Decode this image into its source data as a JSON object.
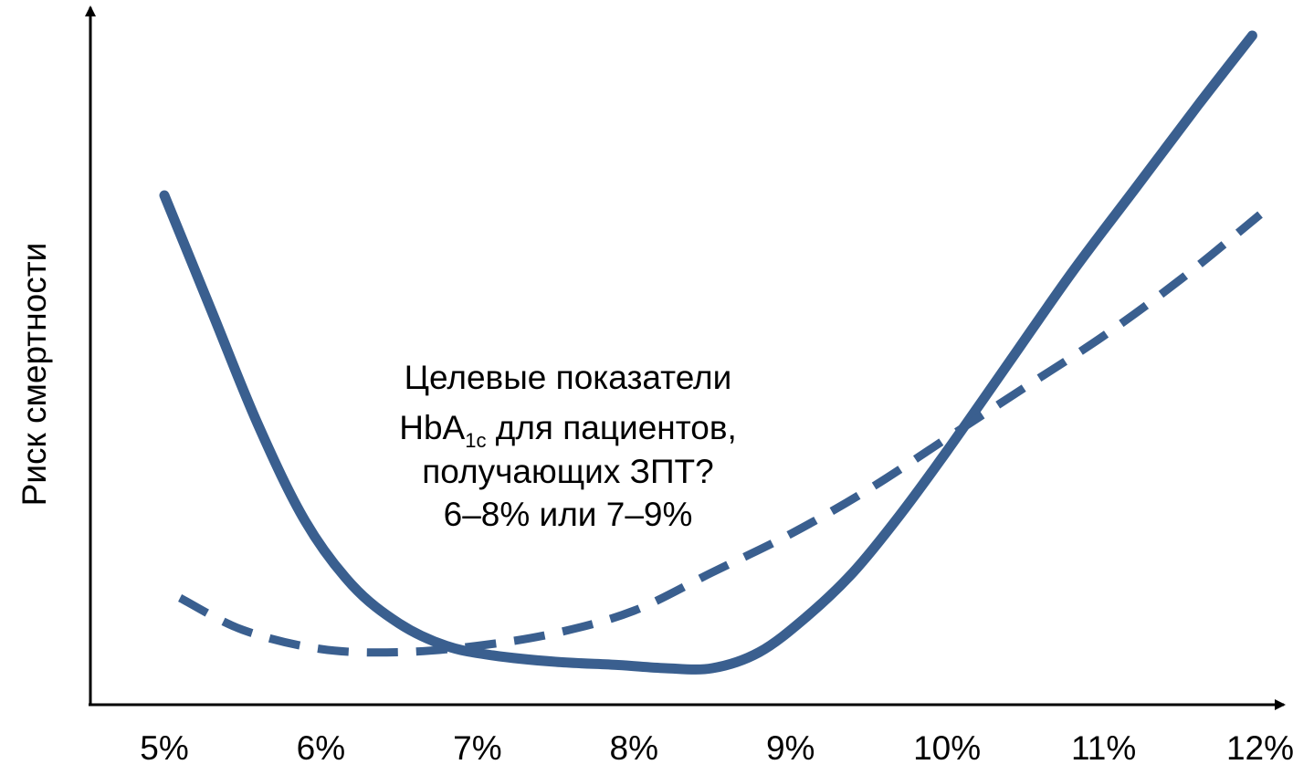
{
  "chart_data": {
    "type": "line",
    "title": "",
    "xlabel": "",
    "ylabel": "Риск смертности",
    "x_ticks": [
      "5%",
      "6%",
      "7%",
      "8%",
      "9%",
      "10%",
      "11%",
      "12%"
    ],
    "xlim": [
      5,
      12
    ],
    "ylim": [
      0,
      100
    ],
    "grid": false,
    "legend": "none",
    "line_color": "#3a5f8f",
    "axis_color": "#000000",
    "series": [
      {
        "style": "solid",
        "points": [
          [
            5.0,
            78
          ],
          [
            5.3,
            60
          ],
          [
            5.6,
            42
          ],
          [
            5.9,
            27
          ],
          [
            6.2,
            17
          ],
          [
            6.5,
            11
          ],
          [
            6.8,
            7.5
          ],
          [
            7.1,
            6
          ],
          [
            7.5,
            5
          ],
          [
            7.9,
            4.5
          ],
          [
            8.2,
            4
          ],
          [
            8.5,
            4
          ],
          [
            8.8,
            6.5
          ],
          [
            9.1,
            12
          ],
          [
            9.4,
            19
          ],
          [
            9.7,
            28
          ],
          [
            10.0,
            38
          ],
          [
            10.4,
            52
          ],
          [
            10.8,
            66
          ],
          [
            11.2,
            79
          ],
          [
            11.6,
            92
          ],
          [
            11.95,
            103
          ]
        ]
      },
      {
        "style": "dashed",
        "points": [
          [
            5.1,
            15
          ],
          [
            5.5,
            10
          ],
          [
            6.0,
            7
          ],
          [
            6.5,
            6.5
          ],
          [
            7.0,
            7.5
          ],
          [
            7.5,
            9.5
          ],
          [
            8.0,
            13
          ],
          [
            8.5,
            19
          ],
          [
            9.0,
            25
          ],
          [
            9.5,
            32
          ],
          [
            10.0,
            40
          ],
          [
            10.5,
            48
          ],
          [
            11.0,
            56
          ],
          [
            11.5,
            65
          ],
          [
            12.0,
            75
          ]
        ]
      }
    ],
    "annotation": {
      "line1": "Целевые показатели",
      "line2_main": "HbA",
      "line2_sub": "1c",
      "line2_rest": " для пациентов,",
      "line3": "получающих ЗПТ?",
      "line4": "6–8% или 7–9%"
    }
  }
}
